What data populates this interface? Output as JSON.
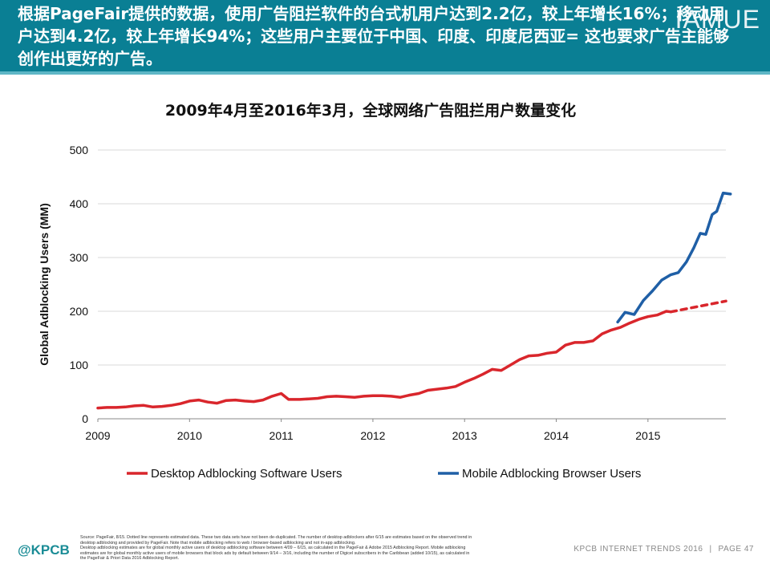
{
  "header": {
    "text": "根据PageFair提供的数据，使用广告阻拦软件的台式机用户达到2.2亿，较上年增长16%；移动用户达到4.2亿，较上年增长94%；这些用户主要位于中国、印度、印度尼西亚= 这也要求广告主能够创作出更好的广告。",
    "brand_mark": "IAMUE"
  },
  "chart_data": {
    "type": "line",
    "title": "2009年4月至2016年3月，全球网络广告阻拦用户数量变化",
    "ylabel": "Global Adblocking Users (MM)",
    "xlabel": "",
    "ylim": [
      0,
      500
    ],
    "xlim": [
      2009,
      2015.85
    ],
    "yticks": [
      0,
      100,
      200,
      300,
      400,
      500
    ],
    "xticks": [
      "2009",
      "2010",
      "2011",
      "2012",
      "2013",
      "2014",
      "2015"
    ],
    "grid": true,
    "legend_position": "bottom",
    "series": [
      {
        "name": "Desktop Adblocking Software Users",
        "color": "#d9262c",
        "style": "solid",
        "points": [
          [
            2009.0,
            20
          ],
          [
            2009.1,
            21
          ],
          [
            2009.2,
            21
          ],
          [
            2009.3,
            22
          ],
          [
            2009.4,
            24
          ],
          [
            2009.5,
            25
          ],
          [
            2009.6,
            22
          ],
          [
            2009.7,
            23
          ],
          [
            2009.8,
            25
          ],
          [
            2009.9,
            28
          ],
          [
            2010.0,
            33
          ],
          [
            2010.1,
            35
          ],
          [
            2010.2,
            31
          ],
          [
            2010.3,
            29
          ],
          [
            2010.4,
            34
          ],
          [
            2010.5,
            35
          ],
          [
            2010.6,
            33
          ],
          [
            2010.7,
            32
          ],
          [
            2010.8,
            35
          ],
          [
            2010.9,
            42
          ],
          [
            2011.0,
            47
          ],
          [
            2011.08,
            36
          ],
          [
            2011.2,
            36
          ],
          [
            2011.3,
            37
          ],
          [
            2011.4,
            38
          ],
          [
            2011.5,
            41
          ],
          [
            2011.6,
            42
          ],
          [
            2011.7,
            41
          ],
          [
            2011.8,
            40
          ],
          [
            2011.9,
            42
          ],
          [
            2012.0,
            43
          ],
          [
            2012.1,
            43
          ],
          [
            2012.2,
            42
          ],
          [
            2012.3,
            40
          ],
          [
            2012.4,
            44
          ],
          [
            2012.5,
            47
          ],
          [
            2012.6,
            53
          ],
          [
            2012.7,
            55
          ],
          [
            2012.8,
            57
          ],
          [
            2012.9,
            60
          ],
          [
            2013.0,
            68
          ],
          [
            2013.1,
            75
          ],
          [
            2013.2,
            83
          ],
          [
            2013.3,
            92
          ],
          [
            2013.4,
            90
          ],
          [
            2013.5,
            100
          ],
          [
            2013.6,
            110
          ],
          [
            2013.7,
            117
          ],
          [
            2013.8,
            118
          ],
          [
            2013.9,
            122
          ],
          [
            2014.0,
            124
          ],
          [
            2014.1,
            137
          ],
          [
            2014.2,
            142
          ],
          [
            2014.3,
            142
          ],
          [
            2014.4,
            145
          ],
          [
            2014.5,
            158
          ],
          [
            2014.6,
            165
          ],
          [
            2014.7,
            170
          ],
          [
            2014.8,
            178
          ],
          [
            2014.9,
            185
          ],
          [
            2015.0,
            190
          ],
          [
            2015.1,
            193
          ],
          [
            2015.2,
            200
          ],
          [
            2015.25,
            199
          ]
        ]
      },
      {
        "name": "Desktop Adblocking Software Users (estimated)",
        "color": "#d9262c",
        "style": "dashed",
        "points": [
          [
            2015.25,
            199
          ],
          [
            2015.85,
            219
          ]
        ]
      },
      {
        "name": "Mobile Adblocking Browser Users",
        "color": "#1f5fa6",
        "style": "solid",
        "points": [
          [
            2014.67,
            180
          ],
          [
            2014.75,
            198
          ],
          [
            2014.85,
            194
          ],
          [
            2014.95,
            220
          ],
          [
            2015.05,
            238
          ],
          [
            2015.15,
            258
          ],
          [
            2015.25,
            268
          ],
          [
            2015.33,
            272
          ],
          [
            2015.42,
            292
          ],
          [
            2015.5,
            318
          ],
          [
            2015.57,
            345
          ],
          [
            2015.63,
            343
          ],
          [
            2015.7,
            380
          ],
          [
            2015.75,
            386
          ],
          [
            2015.82,
            420
          ],
          [
            2015.9,
            418
          ]
        ]
      }
    ],
    "legend": [
      {
        "label": "Desktop Adblocking Software Users",
        "color": "#d9262c"
      },
      {
        "label": "Mobile Adblocking Browser Users",
        "color": "#1f5fa6"
      }
    ]
  },
  "footer": {
    "source_lines": [
      "Source: PageFair, 8/15. Dotted line represents estimated data. These two data sets have not been de-duplicated. The number of desktop adblockers after 6/15 are estimates based on the observed trend in",
      "desktop adblocking and provided by PageFair. Note that mobile adblocking refers to web / browser-based adblocking and not in-app adblocking.",
      "Desktop adblocking estimates are for global monthly active users of desktop adblocking software between 4/09 – 6/15, as calculated in the PageFair & Adobe 2015 Adblocking Report. Mobile adblocking",
      "estimates are for global monthly active users of mobile browsers that block ads by default between 9/14 – 3/16, including the number of Digicel subscribers in the Caribbean (added 10/15), as calculated in",
      "the PageFair & Priori Data 2016 Adblocking Report."
    ],
    "logo": "@KPCB",
    "trends": "KPCB INTERNET TRENDS 2016",
    "separator": "|",
    "page": "PAGE 47"
  }
}
